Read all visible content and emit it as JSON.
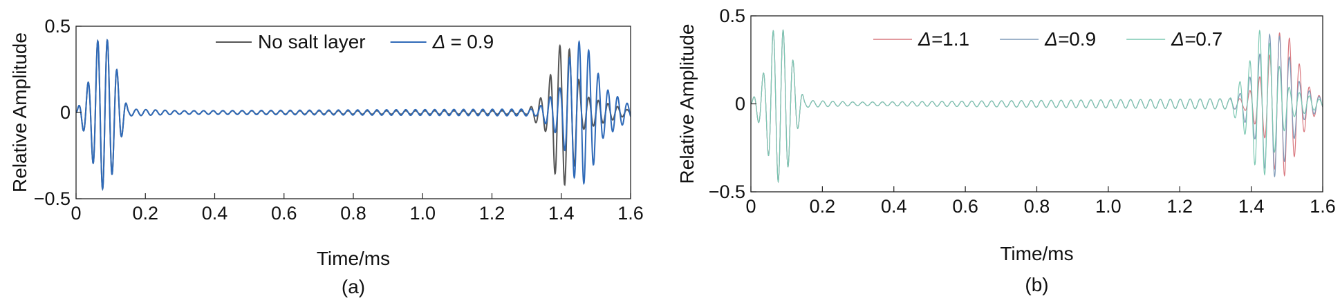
{
  "chart_data": [
    {
      "type": "line",
      "panel_label": "(a)",
      "xlabel": "Time/ms",
      "ylabel": "Relative Amplitude",
      "xlim": [
        0,
        1.6
      ],
      "ylim": [
        -0.5,
        0.5
      ],
      "x_ticks": [
        "0",
        "0.2",
        "0.4",
        "0.6",
        "0.8",
        "1.0",
        "1.2",
        "1.4",
        "1.6"
      ],
      "y_ticks": [
        "−0.5",
        "0",
        "0.5"
      ],
      "legend_position": "top-center",
      "grid": false,
      "series": [
        {
          "name": "No salt layer",
          "label_prefix": "",
          "color": "#555555",
          "values": [
            {
              "t": 0.0,
              "amp": 0.0
            },
            {
              "t": 0.04,
              "amp": 0.2
            },
            {
              "t": 0.06,
              "amp": 0.41
            },
            {
              "t": 0.08,
              "amp": 0.45
            },
            {
              "t": 0.1,
              "amp": 0.39
            },
            {
              "t": 0.13,
              "amp": 0.15
            },
            {
              "t": 0.15,
              "amp": 0.02
            },
            {
              "t": 0.3,
              "amp": 0.01
            },
            {
              "t": 1.3,
              "amp": 0.01
            },
            {
              "t": 1.36,
              "amp": 0.12
            },
            {
              "t": 1.38,
              "amp": 0.35
            },
            {
              "t": 1.41,
              "amp": 0.42
            },
            {
              "t": 1.44,
              "amp": 0.3
            },
            {
              "t": 1.46,
              "amp": 0.1
            },
            {
              "t": 1.6,
              "amp": 0.01
            }
          ]
        },
        {
          "name": "0.9",
          "label_prefix": "Δ = ",
          "color": "#2f6ab8",
          "values": [
            {
              "t": 0.0,
              "amp": 0.0
            },
            {
              "t": 0.04,
              "amp": 0.2
            },
            {
              "t": 0.06,
              "amp": 0.41
            },
            {
              "t": 0.08,
              "amp": 0.45
            },
            {
              "t": 0.1,
              "amp": 0.39
            },
            {
              "t": 0.13,
              "amp": 0.15
            },
            {
              "t": 0.15,
              "amp": 0.02
            },
            {
              "t": 0.3,
              "amp": 0.01
            },
            {
              "t": 1.33,
              "amp": 0.02
            },
            {
              "t": 1.4,
              "amp": 0.15
            },
            {
              "t": 1.43,
              "amp": 0.36
            },
            {
              "t": 1.46,
              "amp": 0.43
            },
            {
              "t": 1.49,
              "amp": 0.32
            },
            {
              "t": 1.52,
              "amp": 0.15
            },
            {
              "t": 1.6,
              "amp": 0.04
            }
          ]
        }
      ]
    },
    {
      "type": "line",
      "panel_label": "(b)",
      "xlabel": "Time/ms",
      "ylabel": "Relative Amplitude",
      "xlim": [
        0,
        1.6
      ],
      "ylim": [
        -0.5,
        0.5
      ],
      "x_ticks": [
        "0",
        "0.2",
        "0.4",
        "0.6",
        "0.8",
        "1.0",
        "1.2",
        "1.4",
        "1.6"
      ],
      "y_ticks": [
        "−0.5",
        "0",
        "0.5"
      ],
      "legend_position": "top-center",
      "grid": false,
      "series": [
        {
          "name": "1.1",
          "label_prefix": "Δ=",
          "color": "#d9787f",
          "values": [
            {
              "t": 0.0,
              "amp": 0.0
            },
            {
              "t": 0.04,
              "amp": 0.2
            },
            {
              "t": 0.06,
              "amp": 0.41
            },
            {
              "t": 0.08,
              "amp": 0.45
            },
            {
              "t": 0.1,
              "amp": 0.39
            },
            {
              "t": 0.13,
              "amp": 0.15
            },
            {
              "t": 0.15,
              "amp": 0.02
            },
            {
              "t": 0.3,
              "amp": 0.01
            },
            {
              "t": 1.38,
              "amp": 0.03
            },
            {
              "t": 1.44,
              "amp": 0.2
            },
            {
              "t": 1.47,
              "amp": 0.4
            },
            {
              "t": 1.5,
              "amp": 0.41
            },
            {
              "t": 1.53,
              "amp": 0.25
            },
            {
              "t": 1.56,
              "amp": 0.1
            },
            {
              "t": 1.6,
              "amp": 0.03
            }
          ]
        },
        {
          "name": "0.9",
          "label_prefix": "Δ=",
          "color": "#7f9ab8",
          "values": [
            {
              "t": 0.0,
              "amp": 0.0
            },
            {
              "t": 0.04,
              "amp": 0.2
            },
            {
              "t": 0.06,
              "amp": 0.41
            },
            {
              "t": 0.08,
              "amp": 0.45
            },
            {
              "t": 0.1,
              "amp": 0.39
            },
            {
              "t": 0.13,
              "amp": 0.15
            },
            {
              "t": 0.15,
              "amp": 0.02
            },
            {
              "t": 0.3,
              "amp": 0.01
            },
            {
              "t": 1.36,
              "amp": 0.03
            },
            {
              "t": 1.41,
              "amp": 0.2
            },
            {
              "t": 1.44,
              "amp": 0.38
            },
            {
              "t": 1.47,
              "amp": 0.42
            },
            {
              "t": 1.5,
              "amp": 0.3
            },
            {
              "t": 1.54,
              "amp": 0.1
            },
            {
              "t": 1.6,
              "amp": 0.03
            }
          ]
        },
        {
          "name": "0.7",
          "label_prefix": "Δ=",
          "color": "#7cc8b2",
          "values": [
            {
              "t": 0.0,
              "amp": 0.0
            },
            {
              "t": 0.04,
              "amp": 0.2
            },
            {
              "t": 0.06,
              "amp": 0.41
            },
            {
              "t": 0.08,
              "amp": 0.45
            },
            {
              "t": 0.1,
              "amp": 0.39
            },
            {
              "t": 0.13,
              "amp": 0.15
            },
            {
              "t": 0.15,
              "amp": 0.02
            },
            {
              "t": 0.3,
              "amp": 0.01
            },
            {
              "t": 1.34,
              "amp": 0.03
            },
            {
              "t": 1.39,
              "amp": 0.2
            },
            {
              "t": 1.42,
              "amp": 0.42
            },
            {
              "t": 1.44,
              "amp": 0.4
            },
            {
              "t": 1.47,
              "amp": 0.25
            },
            {
              "t": 1.51,
              "amp": 0.08
            },
            {
              "t": 1.6,
              "amp": 0.02
            }
          ]
        }
      ]
    }
  ]
}
